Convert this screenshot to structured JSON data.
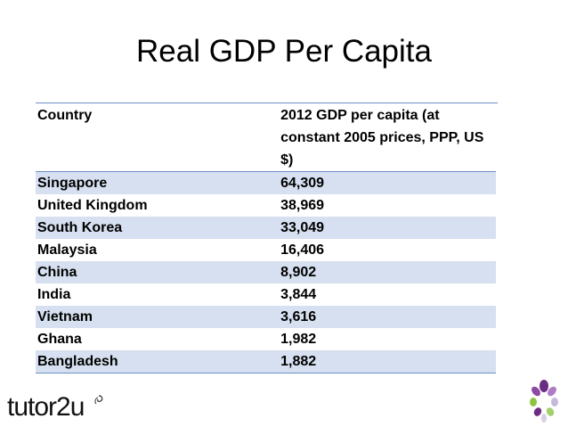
{
  "slide": {
    "title": "Real GDP Per Capita"
  },
  "table": {
    "headers": {
      "country": "Country",
      "gdp": "2012 GDP per capita (at constant 2005 prices, PPP, US $)"
    },
    "rows": [
      {
        "country": "Singapore",
        "gdp": "64,309"
      },
      {
        "country": "United Kingdom",
        "gdp": "38,969"
      },
      {
        "country": "South Korea",
        "gdp": "33,049"
      },
      {
        "country": "Malaysia",
        "gdp": "16,406"
      },
      {
        "country": "China",
        "gdp": "8,902"
      },
      {
        "country": "India",
        "gdp": "3,844"
      },
      {
        "country": "Vietnam",
        "gdp": "3,616"
      },
      {
        "country": "Ghana",
        "gdp": "1,982"
      },
      {
        "country": "Bangladesh",
        "gdp": "1,882"
      }
    ]
  },
  "branding": {
    "logo_text": "tutor2u",
    "icons": [
      "swirl-icon",
      "flower-icon"
    ],
    "colors": {
      "table_stripe": "#d6e0f0",
      "table_rule": "#6f8fc6",
      "flower_purple": "#6b2d83",
      "flower_green": "#8cc63f"
    }
  }
}
